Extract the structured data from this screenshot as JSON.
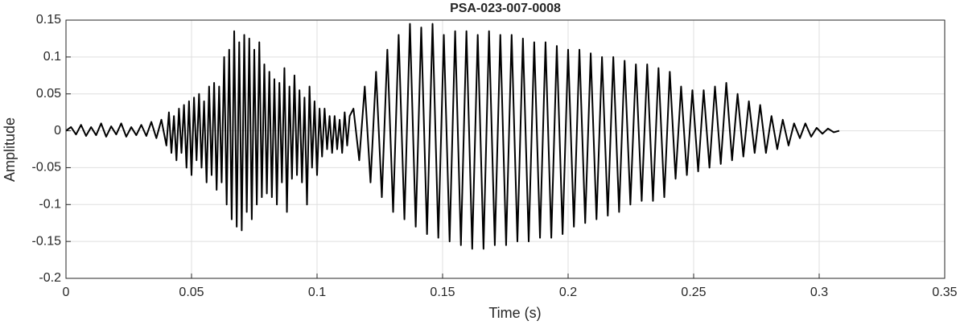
{
  "chart_data": {
    "type": "line",
    "title": "PSA-023-007-0008",
    "xlabel": "Time (s)",
    "ylabel": "Amplitude",
    "color": "#000000",
    "grid": true,
    "xlim": [
      0,
      0.35
    ],
    "xticks": [
      0,
      0.05,
      0.1,
      0.15,
      0.2,
      0.25,
      0.3,
      0.35
    ],
    "ylim": [
      -0.2,
      0.15
    ],
    "yticks": [
      -0.2,
      -0.15,
      -0.1,
      -0.05,
      0,
      0.05,
      0.1,
      0.15
    ],
    "x": [
      0,
      0.002,
      0.004,
      0.006,
      0.008,
      0.01,
      0.012,
      0.014,
      0.016,
      0.018,
      0.02,
      0.022,
      0.024,
      0.026,
      0.028,
      0.03,
      0.032,
      0.034,
      0.036,
      0.038,
      0.04,
      0.041,
      0.042,
      0.043,
      0.044,
      0.045,
      0.046,
      0.047,
      0.048,
      0.049,
      0.05,
      0.051,
      0.052,
      0.053,
      0.054,
      0.055,
      0.056,
      0.057,
      0.058,
      0.059,
      0.06,
      0.061,
      0.062,
      0.063,
      0.064,
      0.065,
      0.066,
      0.067,
      0.068,
      0.069,
      0.07,
      0.071,
      0.072,
      0.073,
      0.074,
      0.075,
      0.076,
      0.077,
      0.078,
      0.079,
      0.08,
      0.081,
      0.082,
      0.083,
      0.084,
      0.085,
      0.086,
      0.087,
      0.088,
      0.089,
      0.09,
      0.091,
      0.092,
      0.093,
      0.094,
      0.095,
      0.096,
      0.097,
      0.098,
      0.099,
      0.1,
      0.101,
      0.102,
      0.103,
      0.104,
      0.105,
      0.106,
      0.107,
      0.108,
      0.109,
      0.11,
      0.111,
      0.112,
      0.113,
      0.1145,
      0.1168,
      0.119,
      0.1213,
      0.1235,
      0.1258,
      0.128,
      0.1303,
      0.1325,
      0.1348,
      0.137,
      0.1393,
      0.1415,
      0.1438,
      0.146,
      0.1483,
      0.1505,
      0.1528,
      0.155,
      0.1573,
      0.1595,
      0.1618,
      0.164,
      0.1663,
      0.1685,
      0.1708,
      0.173,
      0.1753,
      0.1775,
      0.1798,
      0.182,
      0.1843,
      0.1865,
      0.1888,
      0.191,
      0.1933,
      0.1955,
      0.1978,
      0.2,
      0.2023,
      0.2045,
      0.2068,
      0.209,
      0.2113,
      0.2135,
      0.2158,
      0.218,
      0.2203,
      0.2225,
      0.2248,
      0.227,
      0.2293,
      0.2315,
      0.2338,
      0.236,
      0.2383,
      0.2405,
      0.2428,
      0.245,
      0.2473,
      0.2495,
      0.2518,
      0.254,
      0.2563,
      0.2585,
      0.2608,
      0.263,
      0.2653,
      0.2675,
      0.2698,
      0.272,
      0.2743,
      0.2765,
      0.2788,
      0.281,
      0.2833,
      0.2855,
      0.2878,
      0.29,
      0.2923,
      0.2945,
      0.2968,
      0.299,
      0.3013,
      0.3035,
      0.3058,
      0.308
    ],
    "values": [
      0,
      0.005,
      -0.005,
      0.008,
      -0.007,
      0.005,
      -0.006,
      0.01,
      -0.008,
      0.006,
      -0.005,
      0.01,
      -0.008,
      0.005,
      -0.006,
      0.008,
      -0.007,
      0.012,
      -0.01,
      0.015,
      -0.02,
      0.025,
      -0.03,
      0.02,
      -0.04,
      0.03,
      -0.03,
      0.035,
      -0.05,
      0.04,
      -0.06,
      0.045,
      -0.04,
      0.05,
      -0.05,
      0.04,
      -0.07,
      0.06,
      -0.06,
      0.065,
      -0.08,
      0.06,
      -0.07,
      0.1,
      -0.1,
      0.11,
      -0.12,
      0.135,
      -0.13,
      0.12,
      -0.135,
      0.13,
      -0.11,
      0.125,
      -0.12,
      0.11,
      -0.1,
      0.12,
      -0.09,
      0.09,
      -0.085,
      0.08,
      -0.09,
      0.07,
      -0.1,
      0.065,
      -0.07,
      0.085,
      -0.11,
      0.06,
      -0.065,
      0.075,
      -0.06,
      0.055,
      -0.07,
      0.045,
      -0.1,
      0.06,
      -0.05,
      0.04,
      -0.06,
      0.03,
      -0.035,
      0.03,
      -0.025,
      0.02,
      -0.03,
      0.02,
      -0.025,
      0.015,
      -0.03,
      0.025,
      -0.02,
      0.02,
      0.03,
      -0.04,
      0.06,
      -0.07,
      0.08,
      -0.09,
      0.11,
      -0.11,
      0.13,
      -0.12,
      0.145,
      -0.13,
      0.14,
      -0.14,
      0.145,
      -0.145,
      0.13,
      -0.15,
      0.135,
      -0.155,
      0.135,
      -0.16,
      0.13,
      -0.16,
      0.135,
      -0.155,
      0.13,
      -0.155,
      0.13,
      -0.15,
      0.125,
      -0.15,
      0.12,
      -0.145,
      0.12,
      -0.145,
      0.115,
      -0.14,
      0.11,
      -0.13,
      0.11,
      -0.125,
      0.105,
      -0.12,
      0.1,
      -0.115,
      0.1,
      -0.11,
      0.095,
      -0.1,
      0.09,
      -0.095,
      0.09,
      -0.095,
      0.085,
      -0.09,
      0.08,
      -0.065,
      0.06,
      -0.06,
      0.055,
      -0.055,
      0.055,
      -0.05,
      0.06,
      -0.045,
      0.065,
      -0.04,
      0.05,
      -0.035,
      0.04,
      -0.03,
      0.035,
      -0.03,
      0.02,
      -0.025,
      0.015,
      -0.02,
      0.01,
      -0.01,
      0.01,
      -0.008,
      0.004,
      -0.004,
      0.003,
      -0.002,
      0
    ]
  }
}
